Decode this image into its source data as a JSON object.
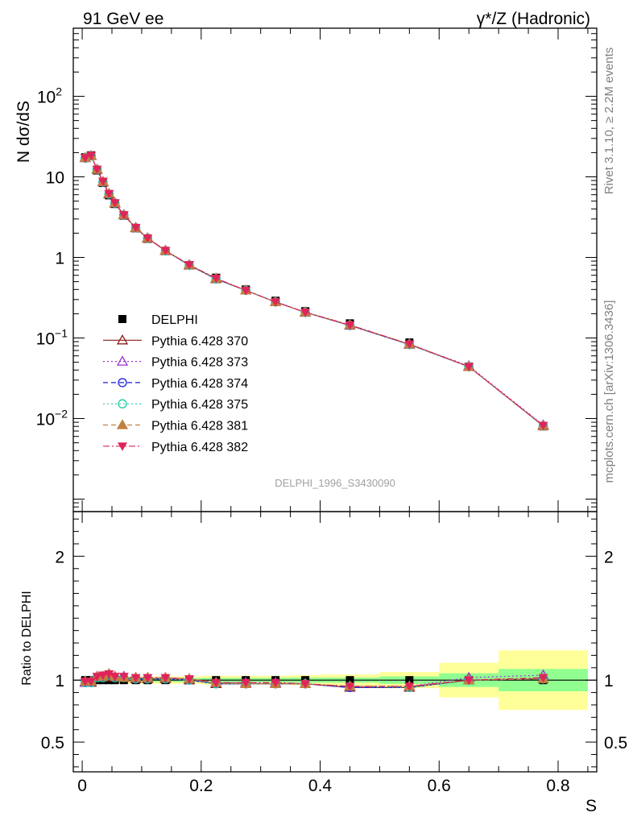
{
  "header": {
    "left": "91 GeV ee",
    "right": "γ*/Z (Hadronic)"
  },
  "side_labels": {
    "rivet": "Rivet 3.1.10, ≥ 2.2M events",
    "mcplots": "mcplots.cern.ch [arXiv:1306.3436]"
  },
  "watermark": "DELPHI_1996_S3430090",
  "colors": {
    "data": "#000000",
    "ratio_band_inner": "#90ff90",
    "ratio_band_outer": "#ffff99"
  },
  "chart_data": [
    {
      "type": "scatter",
      "ylabel": "N dσ/dS",
      "xlabel": "",
      "yscale": "log",
      "xlim": [
        -0.015,
        0.865
      ],
      "ylim": [
        0.0007,
        700
      ],
      "y_ticks": [
        {
          "value": 0.01,
          "base": "10",
          "exp": "−2"
        },
        {
          "value": 0.1,
          "base": "10",
          "exp": "−1"
        },
        {
          "value": 1,
          "base": "1",
          "exp": ""
        },
        {
          "value": 10,
          "base": "10",
          "exp": ""
        },
        {
          "value": 100,
          "base": "10",
          "exp": "2"
        }
      ],
      "x": [
        0.005,
        0.015,
        0.025,
        0.035,
        0.045,
        0.055,
        0.07,
        0.09,
        0.11,
        0.14,
        0.18,
        0.225,
        0.275,
        0.325,
        0.375,
        0.45,
        0.55,
        0.65,
        0.775
      ],
      "series": [
        {
          "name": "DELPHI",
          "color": "#000000",
          "marker": "square-filled",
          "line": "none",
          "values": [
            17.5,
            18.5,
            12.0,
            8.4,
            5.9,
            4.6,
            3.3,
            2.3,
            1.7,
            1.2,
            0.8,
            0.56,
            0.4,
            0.29,
            0.215,
            0.152,
            0.088,
            0.044,
            0.008
          ]
        },
        {
          "name": "Pythia 6.428 370",
          "color": "#8b1a1a",
          "marker": "triangle-open",
          "line": "solid",
          "values": [
            17.2,
            18.2,
            12.3,
            8.6,
            6.1,
            4.7,
            3.35,
            2.32,
            1.72,
            1.21,
            0.8,
            0.54,
            0.39,
            0.28,
            0.208,
            0.143,
            0.083,
            0.044,
            0.0081
          ]
        },
        {
          "name": "Pythia 6.428 373",
          "color": "#9a32cd",
          "marker": "triangle-open",
          "line": "dotted",
          "values": [
            17.2,
            18.3,
            12.4,
            8.7,
            6.2,
            4.75,
            3.38,
            2.34,
            1.74,
            1.22,
            0.81,
            0.55,
            0.39,
            0.28,
            0.209,
            0.144,
            0.084,
            0.045,
            0.0083
          ]
        },
        {
          "name": "Pythia 6.428 374",
          "color": "#1c1ce0",
          "marker": "circle-open",
          "line": "dashed",
          "values": [
            17.1,
            18.2,
            12.3,
            8.6,
            6.1,
            4.7,
            3.36,
            2.33,
            1.73,
            1.21,
            0.8,
            0.54,
            0.39,
            0.28,
            0.208,
            0.143,
            0.083,
            0.044,
            0.0081
          ]
        },
        {
          "name": "Pythia 6.428 375",
          "color": "#20c9a8",
          "marker": "circle-open",
          "line": "dotted",
          "values": [
            17.2,
            18.2,
            12.3,
            8.6,
            6.1,
            4.7,
            3.36,
            2.33,
            1.73,
            1.21,
            0.8,
            0.54,
            0.39,
            0.28,
            0.208,
            0.144,
            0.083,
            0.044,
            0.0081
          ]
        },
        {
          "name": "Pythia 6.428 381",
          "color": "#c08040",
          "marker": "triangle-filled",
          "line": "dashed",
          "values": [
            17.3,
            18.3,
            12.4,
            8.7,
            6.2,
            4.75,
            3.37,
            2.34,
            1.74,
            1.22,
            0.81,
            0.55,
            0.39,
            0.28,
            0.209,
            0.145,
            0.084,
            0.044,
            0.0081
          ]
        },
        {
          "name": "Pythia 6.428 382",
          "color": "#e0245a",
          "marker": "triangle-down-filled",
          "line": "dashdot",
          "values": [
            17.3,
            18.4,
            12.4,
            8.8,
            6.2,
            4.76,
            3.38,
            2.35,
            1.74,
            1.22,
            0.81,
            0.55,
            0.39,
            0.28,
            0.209,
            0.145,
            0.084,
            0.044,
            0.0082
          ]
        }
      ]
    },
    {
      "type": "scatter",
      "ylabel": "Ratio to DELPHI",
      "xlabel": "S",
      "xlim": [
        -0.015,
        0.865
      ],
      "ylim": [
        0.26,
        2.36
      ],
      "x_ticks": [
        0,
        0.2,
        0.4,
        0.6,
        0.8
      ],
      "x_tick_labels": [
        "0",
        "0.2",
        "0.4",
        "0.6",
        "0.8"
      ],
      "y_ticks": [
        0.5,
        1,
        2
      ],
      "y_tick_labels": [
        "0.5",
        "1",
        "2"
      ],
      "bins": [
        [
          0,
          0.01
        ],
        [
          0.01,
          0.02
        ],
        [
          0.02,
          0.03
        ],
        [
          0.03,
          0.04
        ],
        [
          0.04,
          0.05
        ],
        [
          0.05,
          0.06
        ],
        [
          0.06,
          0.08
        ],
        [
          0.08,
          0.1
        ],
        [
          0.1,
          0.12
        ],
        [
          0.12,
          0.16
        ],
        [
          0.16,
          0.2
        ],
        [
          0.2,
          0.25
        ],
        [
          0.25,
          0.3
        ],
        [
          0.3,
          0.35
        ],
        [
          0.35,
          0.4
        ],
        [
          0.4,
          0.5
        ],
        [
          0.5,
          0.6
        ],
        [
          0.6,
          0.7
        ],
        [
          0.7,
          0.85
        ]
      ],
      "band_inner": [
        0.015,
        0.015,
        0.015,
        0.015,
        0.015,
        0.015,
        0.015,
        0.015,
        0.015,
        0.015,
        0.015,
        0.018,
        0.018,
        0.018,
        0.02,
        0.02,
        0.03,
        0.055,
        0.09
      ],
      "band_outer": [
        0.03,
        0.03,
        0.03,
        0.03,
        0.03,
        0.03,
        0.03,
        0.03,
        0.03,
        0.03,
        0.03,
        0.035,
        0.035,
        0.035,
        0.04,
        0.045,
        0.065,
        0.14,
        0.24
      ],
      "series": [
        {
          "name": "Pythia 6.428 370",
          "values": [
            0.98,
            0.98,
            1.02,
            1.02,
            1.04,
            1.02,
            1.02,
            1.01,
            1.01,
            1.01,
            1.0,
            0.97,
            0.97,
            0.97,
            0.97,
            0.94,
            0.94,
            1.0,
            1.01
          ]
        },
        {
          "name": "Pythia 6.428 373",
          "values": [
            0.98,
            0.99,
            1.03,
            1.03,
            1.05,
            1.03,
            1.03,
            1.02,
            1.02,
            1.02,
            1.01,
            0.98,
            0.98,
            0.98,
            0.97,
            0.95,
            0.95,
            1.02,
            1.04
          ]
        },
        {
          "name": "Pythia 6.428 374",
          "values": [
            0.98,
            0.98,
            1.02,
            1.02,
            1.04,
            1.02,
            1.02,
            1.01,
            1.01,
            1.01,
            1.0,
            0.97,
            0.97,
            0.97,
            0.97,
            0.94,
            0.94,
            1.0,
            1.01
          ]
        },
        {
          "name": "Pythia 6.428 375",
          "values": [
            0.98,
            0.98,
            1.02,
            1.02,
            1.04,
            1.02,
            1.02,
            1.01,
            1.01,
            1.01,
            1.0,
            0.97,
            0.97,
            0.97,
            0.97,
            0.95,
            0.94,
            1.0,
            1.01
          ]
        },
        {
          "name": "Pythia 6.428 381",
          "values": [
            0.99,
            0.99,
            1.03,
            1.03,
            1.05,
            1.03,
            1.02,
            1.02,
            1.02,
            1.02,
            1.01,
            0.98,
            0.97,
            0.97,
            0.97,
            0.95,
            0.95,
            1.0,
            1.01
          ]
        },
        {
          "name": "Pythia 6.428 382",
          "values": [
            0.99,
            0.99,
            1.03,
            1.04,
            1.05,
            1.03,
            1.03,
            1.02,
            1.02,
            1.02,
            1.01,
            0.98,
            0.98,
            0.98,
            0.97,
            0.95,
            0.95,
            1.0,
            1.02
          ]
        }
      ]
    }
  ]
}
